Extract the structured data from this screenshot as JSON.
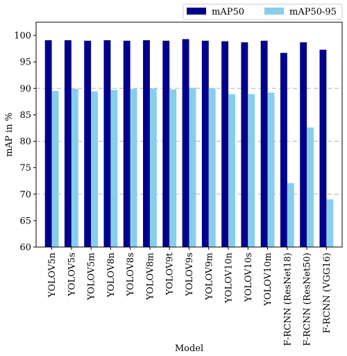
{
  "chart_data": {
    "type": "bar",
    "title": "",
    "xlabel": "Model",
    "ylabel": "mAP in %",
    "ylim": [
      60,
      102.5
    ],
    "yticks": [
      60,
      65,
      70,
      75,
      80,
      85,
      90,
      95,
      100
    ],
    "grid": "horizontal dashed at 70, 80, 90",
    "legend_position": "top-right, above plot",
    "categories": [
      "YOLOV5n",
      "YOLOV5s",
      "YOLOV5m",
      "YOLOV8n",
      "YOLOV8s",
      "YOLOV8m",
      "YOLOV9t",
      "YOLOV9s",
      "YOLOV9m",
      "YOLOV10n",
      "YOLOV10s",
      "YOLOV10m",
      "F-RCNN (ResNet18)",
      "F-RCNN (ResNet50)",
      "F-RCNN (VGG16)"
    ],
    "series": [
      {
        "name": "mAP50",
        "color": "#00008b",
        "values": [
          99.1,
          99.1,
          99.0,
          99.1,
          99.0,
          99.1,
          99.0,
          99.3,
          99.0,
          98.9,
          98.7,
          99.0,
          96.7,
          98.7,
          97.3
        ]
      },
      {
        "name": "mAP50-95",
        "color": "#87ceeb",
        "values": [
          89.5,
          89.9,
          89.4,
          89.7,
          89.9,
          90.0,
          89.8,
          90.1,
          90.0,
          88.9,
          88.9,
          89.2,
          72.1,
          82.6,
          69.0
        ]
      }
    ]
  }
}
